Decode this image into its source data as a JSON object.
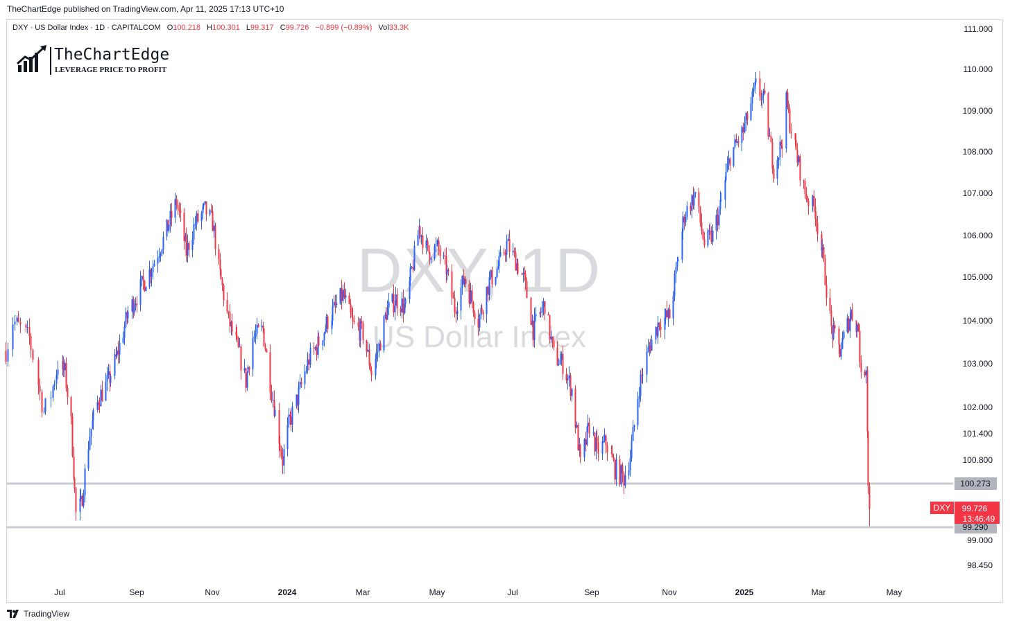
{
  "publisher_line": "TheChartEdge published on TradingView.com, Apr 11, 2025 17:13 UTC+10",
  "symbol_bar": {
    "title": "DXY · US Dollar Index · 1D · CAPITALCOM",
    "o_label": "O",
    "o": "100.218",
    "h_label": "H",
    "h": "100.301",
    "l_label": "L",
    "l": "99.317",
    "c_label": "C",
    "c": "99.726",
    "change": "−0.899 (−0.89%)",
    "vol_label": "Vol",
    "vol": "33.3K"
  },
  "logo": {
    "name": "TheChartEdge",
    "tagline": "LEVERAGE PRICE TO PROFIT"
  },
  "watermark": {
    "symbol": "DXY, 1D",
    "name": "US Dollar Index"
  },
  "footer": {
    "brand": "TradingView"
  },
  "colors": {
    "up": "#2962ff",
    "down": "#f23645",
    "level": "#c9cbd2",
    "label_bg": "#b2b5be"
  },
  "chart_data": {
    "type": "candlestick",
    "series_name": "DXY",
    "y_ticks": [
      111.0,
      110.0,
      109.0,
      108.0,
      107.0,
      106.0,
      105.0,
      104.0,
      103.0,
      102.0,
      101.4,
      100.8,
      99.0,
      98.45
    ],
    "y_tick_labels": [
      "111.000",
      "110.000",
      "109.000",
      "108.000",
      "107.000",
      "106.000",
      "105.000",
      "104.000",
      "103.000",
      "102.000",
      "101.400",
      "100.800",
      "99.000",
      "98.450"
    ],
    "x_ticks": [
      {
        "label": "Jul",
        "date": "2023-07-01",
        "bold": false
      },
      {
        "label": "Sep",
        "date": "2023-09-01",
        "bold": false
      },
      {
        "label": "Nov",
        "date": "2023-11-01",
        "bold": false
      },
      {
        "label": "2024",
        "date": "2024-01-01",
        "bold": true
      },
      {
        "label": "Mar",
        "date": "2024-03-01",
        "bold": false
      },
      {
        "label": "May",
        "date": "2024-05-01",
        "bold": false
      },
      {
        "label": "Jul",
        "date": "2024-07-01",
        "bold": false
      },
      {
        "label": "Sep",
        "date": "2024-09-01",
        "bold": false
      },
      {
        "label": "Nov",
        "date": "2024-11-01",
        "bold": false
      },
      {
        "label": "2025",
        "date": "2025-01-01",
        "bold": true
      },
      {
        "label": "Mar",
        "date": "2025-03-01",
        "bold": false
      },
      {
        "label": "May",
        "date": "2025-05-01",
        "bold": false
      }
    ],
    "horizontal_levels": [
      {
        "value": 100.273,
        "label": "100.273"
      },
      {
        "value": 99.29,
        "label": "99.290"
      }
    ],
    "last_price": {
      "symbol": "DXY",
      "value": 99.726,
      "label": "99.726",
      "countdown": "13:46:49"
    },
    "swing_path": [
      [
        "2023-06-01",
        103.3
      ],
      [
        "2023-06-05",
        104.0
      ],
      [
        "2023-06-14",
        103.6
      ],
      [
        "2023-06-22",
        101.9
      ],
      [
        "2023-06-26",
        102.3
      ],
      [
        "2023-06-30",
        103.0
      ],
      [
        "2023-07-05",
        102.8
      ],
      [
        "2023-07-10",
        101.6
      ],
      [
        "2023-07-14",
        99.6
      ],
      [
        "2023-07-18",
        99.8
      ],
      [
        "2023-07-25",
        101.4
      ],
      [
        "2023-08-01",
        102.2
      ],
      [
        "2023-08-09",
        102.6
      ],
      [
        "2023-08-16",
        103.2
      ],
      [
        "2023-08-25",
        104.2
      ],
      [
        "2023-09-05",
        104.8
      ],
      [
        "2023-09-14",
        105.3
      ],
      [
        "2023-09-26",
        106.2
      ],
      [
        "2023-10-03",
        106.8
      ],
      [
        "2023-10-11",
        105.6
      ],
      [
        "2023-10-18",
        106.3
      ],
      [
        "2023-10-26",
        106.6
      ],
      [
        "2023-11-01",
        106.3
      ],
      [
        "2023-11-06",
        105.2
      ],
      [
        "2023-11-14",
        104.0
      ],
      [
        "2023-11-21",
        103.4
      ],
      [
        "2023-11-28",
        102.6
      ],
      [
        "2023-12-04",
        103.6
      ],
      [
        "2023-12-12",
        103.8
      ],
      [
        "2023-12-19",
        102.4
      ],
      [
        "2023-12-28",
        100.8
      ],
      [
        "2024-01-02",
        101.6
      ],
      [
        "2024-01-10",
        102.3
      ],
      [
        "2024-01-18",
        103.1
      ],
      [
        "2024-01-26",
        103.5
      ],
      [
        "2024-02-02",
        104.0
      ],
      [
        "2024-02-14",
        104.6
      ],
      [
        "2024-02-22",
        103.9
      ],
      [
        "2024-03-01",
        103.7
      ],
      [
        "2024-03-08",
        102.8
      ],
      [
        "2024-03-14",
        103.4
      ],
      [
        "2024-03-20",
        104.2
      ],
      [
        "2024-03-28",
        104.5
      ],
      [
        "2024-04-05",
        104.3
      ],
      [
        "2024-04-16",
        106.2
      ],
      [
        "2024-04-23",
        105.6
      ],
      [
        "2024-05-01",
        105.7
      ],
      [
        "2024-05-08",
        105.2
      ],
      [
        "2024-05-15",
        104.3
      ],
      [
        "2024-05-23",
        105.0
      ],
      [
        "2024-06-03",
        104.0
      ],
      [
        "2024-06-12",
        104.9
      ],
      [
        "2024-06-20",
        105.3
      ],
      [
        "2024-06-26",
        105.8
      ],
      [
        "2024-07-03",
        105.4
      ],
      [
        "2024-07-10",
        104.9
      ],
      [
        "2024-07-17",
        103.8
      ],
      [
        "2024-07-26",
        104.4
      ],
      [
        "2024-08-02",
        103.2
      ],
      [
        "2024-08-09",
        103.0
      ],
      [
        "2024-08-16",
        102.4
      ],
      [
        "2024-08-23",
        100.7
      ],
      [
        "2024-08-30",
        101.6
      ],
      [
        "2024-09-05",
        101.0
      ],
      [
        "2024-09-12",
        101.2
      ],
      [
        "2024-09-19",
        100.6
      ],
      [
        "2024-09-26",
        100.4
      ],
      [
        "2024-10-01",
        100.9
      ],
      [
        "2024-10-08",
        102.5
      ],
      [
        "2024-10-16",
        103.4
      ],
      [
        "2024-10-24",
        104.0
      ],
      [
        "2024-11-01",
        104.1
      ],
      [
        "2024-11-06",
        105.1
      ],
      [
        "2024-11-13",
        106.5
      ],
      [
        "2024-11-22",
        107.0
      ],
      [
        "2024-11-29",
        105.8
      ],
      [
        "2024-12-06",
        106.0
      ],
      [
        "2024-12-13",
        106.8
      ],
      [
        "2024-12-20",
        107.9
      ],
      [
        "2024-12-31",
        108.5
      ],
      [
        "2025-01-10",
        109.6
      ],
      [
        "2025-01-17",
        109.2
      ],
      [
        "2025-01-24",
        107.6
      ],
      [
        "2025-01-31",
        108.3
      ],
      [
        "2025-02-03",
        109.2
      ],
      [
        "2025-02-10",
        108.1
      ],
      [
        "2025-02-18",
        107.0
      ],
      [
        "2025-02-26",
        106.6
      ],
      [
        "2025-03-04",
        105.5
      ],
      [
        "2025-03-11",
        103.8
      ],
      [
        "2025-03-18",
        103.3
      ],
      [
        "2025-03-27",
        104.2
      ],
      [
        "2025-04-02",
        103.8
      ],
      [
        "2025-04-04",
        102.6
      ],
      [
        "2025-04-08",
        103.0
      ],
      [
        "2025-04-10",
        100.2
      ],
      [
        "2025-04-11",
        99.6
      ]
    ]
  }
}
